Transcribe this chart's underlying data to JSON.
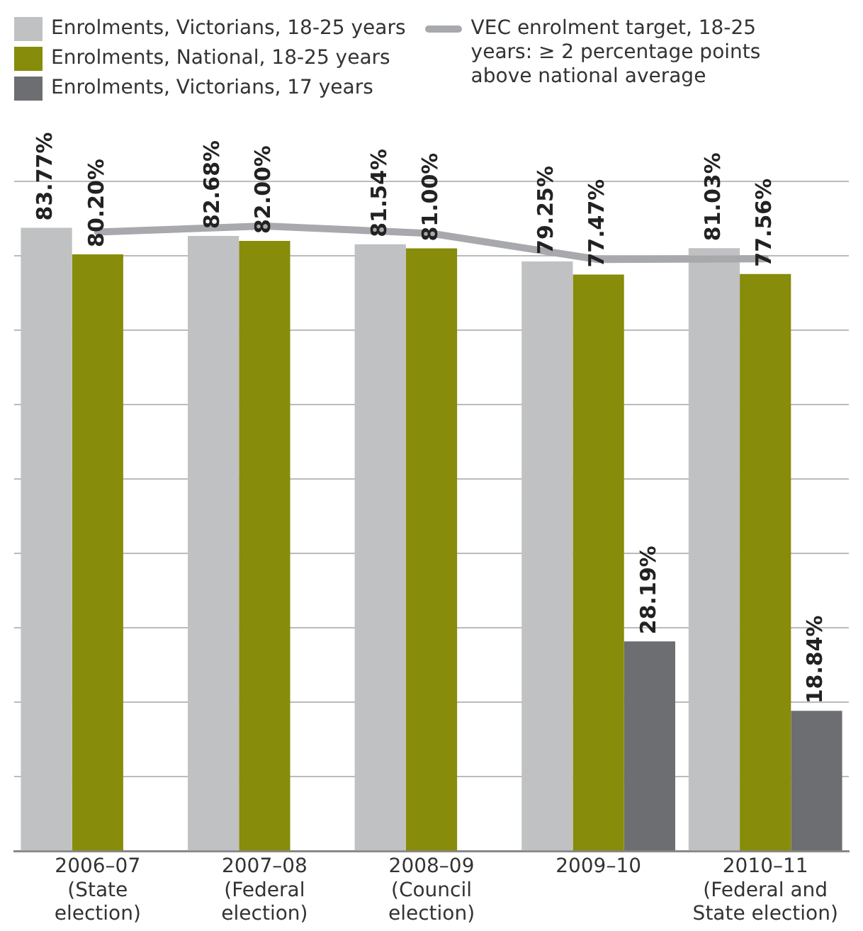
{
  "chart_data": {
    "type": "bar",
    "categories": [
      "2006–07\n(State\nelection)",
      "2007–08\n(Federal\nelection)",
      "2008–09\n(Council\nelection)",
      "2009–10",
      "2010–11\n(Federal and\nState election)"
    ],
    "series": [
      {
        "name": "Enrolments, Victorians, 18-25 years",
        "color": "#c0c1c3",
        "values": [
          83.77,
          82.68,
          81.54,
          79.25,
          81.03
        ],
        "value_labels": [
          "83.77%",
          "82.68%",
          "81.54%",
          "79.25%",
          "81.03%"
        ]
      },
      {
        "name": "Enrolments, National, 18-25 years",
        "color": "#878c0a",
        "values": [
          80.2,
          82.0,
          81.0,
          77.47,
          77.56
        ],
        "value_labels": [
          "80.20%",
          "82.00%",
          "81.00%",
          "77.47%",
          "77.56%"
        ]
      },
      {
        "name": "Enrolments, Victorians, 17 years",
        "color": "#6d6e71",
        "values": [
          null,
          null,
          null,
          28.19,
          18.84
        ],
        "value_labels": [
          null,
          null,
          null,
          "28.19%",
          "18.84%"
        ]
      },
      {
        "type": "line",
        "name": "VEC enrolment target, 18-25 years: ≥ 2 percentage points above national average",
        "color": "#a7a9ac",
        "values": [
          83.2,
          84.0,
          83.0,
          79.5,
          79.6
        ]
      }
    ],
    "grid": "y",
    "legend": "top",
    "tick_labels": "x",
    "marker": "none",
    "line_style": "solid"
  }
}
